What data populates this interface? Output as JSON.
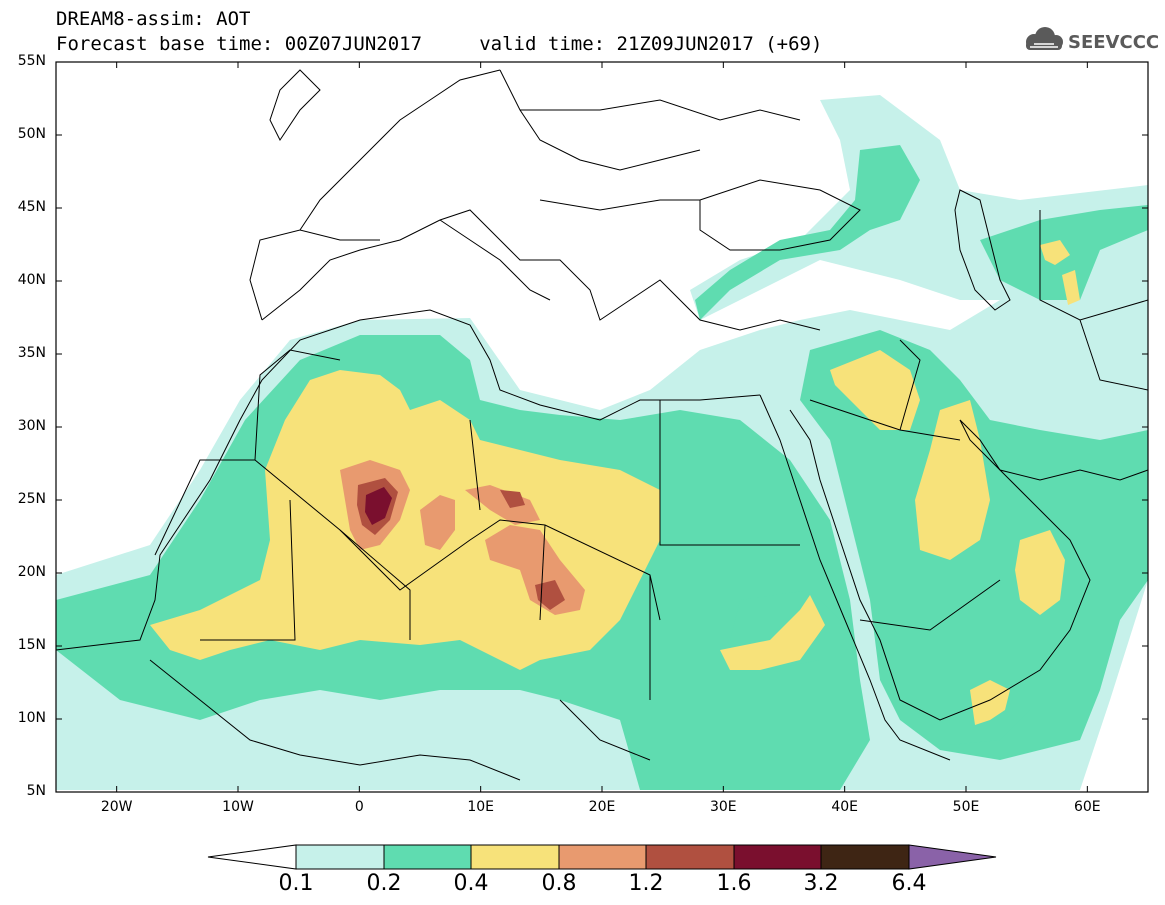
{
  "header": {
    "line1": "DREAM8-assim: AOT",
    "line2": "Forecast base time: 00Z07JUN2017     valid time: 21Z09JUN2017 (+69)"
  },
  "logo": {
    "text": "SEEVCCC",
    "icon": "cloud-icon"
  },
  "map": {
    "lon_range": [
      -25,
      65
    ],
    "lat_range": [
      5,
      55
    ],
    "lat_ticks": [
      "55N",
      "50N",
      "45N",
      "40N",
      "35N",
      "30N",
      "25N",
      "20N",
      "15N",
      "10N",
      "5N"
    ],
    "lon_ticks": [
      "20W",
      "10W",
      "0",
      "10E",
      "20E",
      "30E",
      "40E",
      "50E",
      "60E"
    ],
    "coastline_color": "#000000"
  },
  "colorbar": {
    "labels": [
      "0.1",
      "0.2",
      "0.4",
      "0.8",
      "1.2",
      "1.6",
      "3.2",
      "6.4"
    ],
    "colors": {
      "c01": "#c6f1ea",
      "c02": "#5fdcb0",
      "c04": "#f7e27a",
      "c08": "#e89a6f",
      "c12": "#b05040",
      "c16": "#7a0f2e",
      "c32": "#3e2514",
      "c64": "#8a62a8"
    }
  }
}
